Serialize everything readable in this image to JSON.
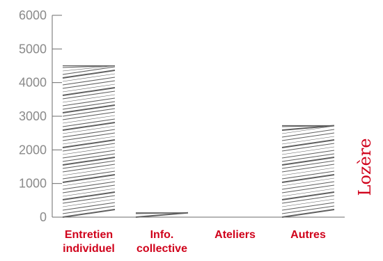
{
  "chart_data": {
    "type": "bar",
    "categories": [
      [
        "Entretien",
        "individuel"
      ],
      [
        "Info.",
        "collective"
      ],
      [
        "Ateliers"
      ],
      [
        "Autres"
      ]
    ],
    "values": [
      4500,
      130,
      0,
      2720
    ],
    "ylim": [
      0,
      6000
    ],
    "yticks": [
      "0",
      "1000",
      "2000",
      "3000",
      "4000",
      "5000",
      "6000"
    ],
    "side_label": "Lozère",
    "grid": false,
    "colors": {
      "bar_stroke": "#5f5f5f",
      "axis": "#6b6b6b",
      "tick_text": "#8a8a8a",
      "category_text": "#d0021b",
      "side_label": "#d0021b"
    }
  }
}
